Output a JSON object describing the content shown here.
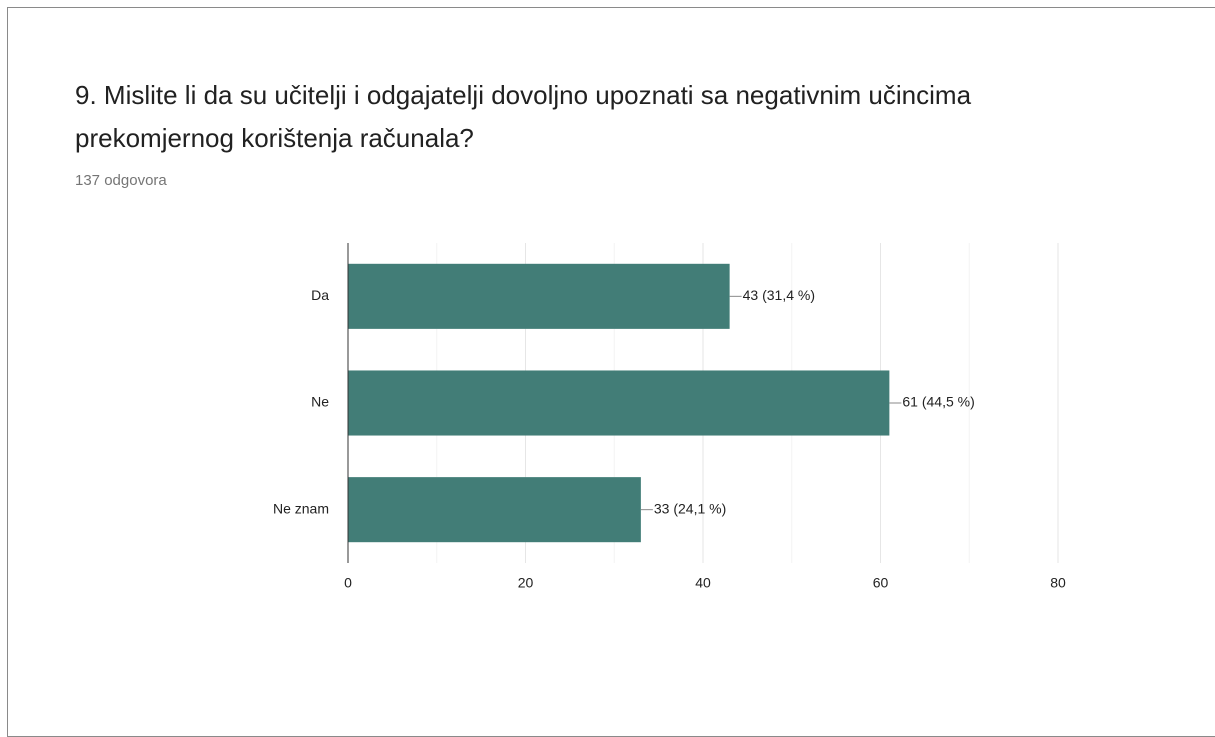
{
  "chart_data": {
    "type": "barh",
    "title": "9. Mislite li da su učitelji i odgajatelji dovoljno upoznati sa negativnim učincima prekomjernog korištenja računala?",
    "subtitle": "137 odgovora",
    "categories": [
      "Da",
      "Ne",
      "Ne znam"
    ],
    "values": [
      43,
      61,
      33
    ],
    "value_labels": [
      "43 (31,4 %)",
      "61 (44,5 %)",
      "33 (24,1 %)"
    ],
    "color": "#427d77",
    "xlim": [
      0,
      80
    ],
    "xticks": [
      0,
      20,
      40,
      60,
      80
    ],
    "minor_xticks": [
      10,
      30,
      50,
      70
    ],
    "grid": true
  }
}
